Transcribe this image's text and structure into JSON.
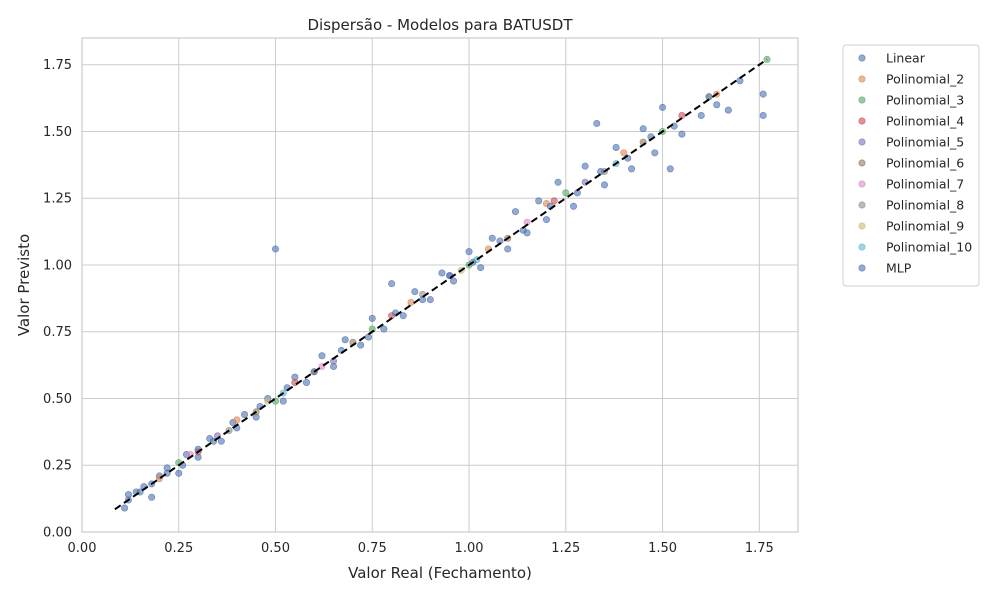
{
  "chart_data": {
    "type": "scatter",
    "title": "Dispersão - Modelos para BATUSDT",
    "xlabel": "Valor Real (Fechamento)",
    "ylabel": "Valor Previsto",
    "xlim": [
      0.0,
      1.85
    ],
    "ylim": [
      0.0,
      1.85
    ],
    "xticks": [
      "0.00",
      "0.25",
      "0.50",
      "0.75",
      "1.00",
      "1.25",
      "1.50",
      "1.75"
    ],
    "yticks": [
      "0.00",
      "0.25",
      "0.50",
      "0.75",
      "1.00",
      "1.25",
      "1.50",
      "1.75"
    ],
    "grid": true,
    "legend_position": "outside-top-right",
    "reference_line": {
      "x": [
        0.085,
        1.77
      ],
      "y": [
        0.085,
        1.77
      ],
      "color": "#000000",
      "style": "dashed"
    },
    "series": [
      {
        "name": "Linear",
        "color": "#4c72b0",
        "points": [
          [
            0.11,
            0.09
          ],
          [
            0.12,
            0.14
          ],
          [
            0.14,
            0.15
          ],
          [
            0.16,
            0.17
          ],
          [
            0.18,
            0.13
          ],
          [
            0.2,
            0.21
          ],
          [
            0.22,
            0.24
          ],
          [
            0.25,
            0.22
          ],
          [
            0.27,
            0.29
          ],
          [
            0.3,
            0.28
          ],
          [
            0.33,
            0.35
          ],
          [
            0.36,
            0.34
          ],
          [
            0.39,
            0.41
          ],
          [
            0.42,
            0.44
          ],
          [
            0.45,
            0.43
          ],
          [
            0.48,
            0.5
          ],
          [
            0.5,
            1.06
          ],
          [
            0.52,
            0.49
          ],
          [
            0.55,
            0.58
          ],
          [
            0.58,
            0.56
          ],
          [
            0.62,
            0.66
          ],
          [
            0.65,
            0.62
          ],
          [
            0.68,
            0.72
          ],
          [
            0.72,
            0.7
          ],
          [
            0.75,
            0.8
          ],
          [
            0.78,
            0.76
          ],
          [
            0.8,
            0.93
          ],
          [
            0.83,
            0.81
          ],
          [
            0.86,
            0.9
          ],
          [
            0.9,
            0.87
          ],
          [
            0.93,
            0.97
          ],
          [
            0.96,
            0.94
          ],
          [
            1.0,
            1.05
          ],
          [
            1.03,
            0.99
          ],
          [
            1.06,
            1.1
          ],
          [
            1.1,
            1.06
          ],
          [
            1.12,
            1.2
          ],
          [
            1.15,
            1.12
          ],
          [
            1.18,
            1.24
          ],
          [
            1.2,
            1.17
          ],
          [
            1.23,
            1.31
          ],
          [
            1.27,
            1.22
          ],
          [
            1.3,
            1.37
          ],
          [
            1.33,
            1.53
          ],
          [
            1.35,
            1.3
          ],
          [
            1.38,
            1.44
          ],
          [
            1.42,
            1.36
          ],
          [
            1.45,
            1.51
          ],
          [
            1.48,
            1.42
          ],
          [
            1.5,
            1.59
          ],
          [
            1.52,
            1.36
          ],
          [
            1.55,
            1.49
          ],
          [
            1.6,
            1.56
          ],
          [
            1.64,
            1.6
          ],
          [
            1.67,
            1.58
          ],
          [
            1.76,
            1.56
          ],
          [
            1.76,
            1.64
          ]
        ]
      },
      {
        "name": "Polinomial_2",
        "color": "#dd8452",
        "points": [
          [
            0.2,
            0.2
          ],
          [
            0.4,
            0.42
          ],
          [
            0.6,
            0.6
          ],
          [
            0.85,
            0.86
          ],
          [
            1.05,
            1.06
          ],
          [
            1.2,
            1.23
          ],
          [
            1.4,
            1.42
          ],
          [
            1.64,
            1.64
          ]
        ]
      },
      {
        "name": "Polinomial_3",
        "color": "#55a868",
        "points": [
          [
            0.25,
            0.26
          ],
          [
            0.5,
            0.49
          ],
          [
            0.75,
            0.76
          ],
          [
            1.0,
            1.0
          ],
          [
            1.25,
            1.27
          ],
          [
            1.5,
            1.5
          ],
          [
            1.77,
            1.77
          ]
        ]
      },
      {
        "name": "Polinomial_4",
        "color": "#c44e52",
        "points": [
          [
            0.3,
            0.3
          ],
          [
            0.55,
            0.56
          ],
          [
            0.8,
            0.81
          ],
          [
            1.22,
            1.24
          ],
          [
            1.55,
            1.56
          ]
        ]
      },
      {
        "name": "Polinomial_5",
        "color": "#8172b3",
        "points": [
          [
            0.35,
            0.36
          ],
          [
            0.65,
            0.64
          ],
          [
            0.95,
            0.96
          ],
          [
            1.3,
            1.31
          ]
        ]
      },
      {
        "name": "Polinomial_6",
        "color": "#937860",
        "points": [
          [
            0.45,
            0.45
          ],
          [
            0.7,
            0.71
          ],
          [
            1.1,
            1.1
          ],
          [
            1.45,
            1.46
          ]
        ]
      },
      {
        "name": "Polinomial_7",
        "color": "#da8bc3",
        "points": [
          [
            0.28,
            0.29
          ],
          [
            0.62,
            0.62
          ],
          [
            1.15,
            1.16
          ]
        ]
      },
      {
        "name": "Polinomial_8",
        "color": "#8c8c8c",
        "points": [
          [
            0.38,
            0.38
          ],
          [
            0.88,
            0.89
          ],
          [
            1.35,
            1.35
          ]
        ]
      },
      {
        "name": "Polinomial_9",
        "color": "#ccb974",
        "points": [
          [
            0.48,
            0.49
          ],
          [
            0.98,
            0.98
          ],
          [
            1.62,
            1.63
          ]
        ]
      },
      {
        "name": "Polinomial_10",
        "color": "#64b5cd",
        "points": [
          [
            0.52,
            0.52
          ],
          [
            1.02,
            1.02
          ],
          [
            1.38,
            1.38
          ]
        ]
      },
      {
        "name": "MLP",
        "color": "#4c72b0",
        "points": [
          [
            0.12,
            0.12
          ],
          [
            0.15,
            0.15
          ],
          [
            0.18,
            0.18
          ],
          [
            0.22,
            0.22
          ],
          [
            0.26,
            0.25
          ],
          [
            0.3,
            0.31
          ],
          [
            0.34,
            0.34
          ],
          [
            0.4,
            0.39
          ],
          [
            0.46,
            0.47
          ],
          [
            0.53,
            0.54
          ],
          [
            0.6,
            0.6
          ],
          [
            0.67,
            0.68
          ],
          [
            0.74,
            0.73
          ],
          [
            0.81,
            0.82
          ],
          [
            0.88,
            0.87
          ],
          [
            0.95,
            0.96
          ],
          [
            1.01,
            1.01
          ],
          [
            1.08,
            1.09
          ],
          [
            1.14,
            1.13
          ],
          [
            1.21,
            1.22
          ],
          [
            1.28,
            1.27
          ],
          [
            1.34,
            1.35
          ],
          [
            1.41,
            1.4
          ],
          [
            1.47,
            1.48
          ],
          [
            1.53,
            1.52
          ],
          [
            1.62,
            1.63
          ],
          [
            1.7,
            1.69
          ]
        ]
      }
    ]
  }
}
